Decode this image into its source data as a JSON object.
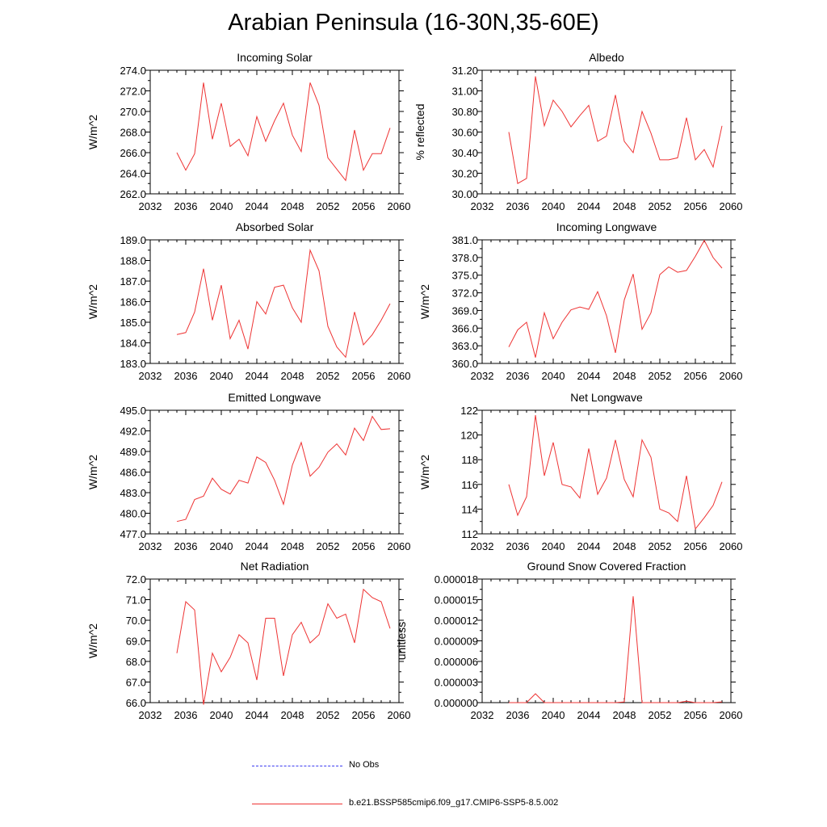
{
  "title": "Arabian Peninsula (16-30N,35-60E)",
  "legend": [
    {
      "label": "No Obs",
      "color": "#3a3af0",
      "style": "dashed"
    },
    {
      "label": "b.e21.BSSP585cmip6.f09_g17.CMIP6-SSP5-8.5.002",
      "color": "#ee3333",
      "style": "solid"
    }
  ],
  "chart_data": [
    {
      "type": "line",
      "title": "Incoming Solar",
      "ylabel": "W/m^2",
      "xlim": [
        2032,
        2060
      ],
      "xticks": [
        "2032",
        "2036",
        "2040",
        "2044",
        "2048",
        "2052",
        "2056",
        "2060"
      ],
      "ylim": [
        262.0,
        274.0
      ],
      "yticks": [
        "262.0",
        "264.0",
        "266.0",
        "268.0",
        "270.0",
        "272.0",
        "274.0"
      ],
      "color": "#ee3333",
      "x": [
        2035,
        2036,
        2037,
        2038,
        2039,
        2040,
        2041,
        2042,
        2043,
        2044,
        2045,
        2046,
        2047,
        2048,
        2049,
        2050,
        2051,
        2052,
        2053,
        2054,
        2055,
        2056,
        2057,
        2058,
        2059
      ],
      "values": [
        266.0,
        264.3,
        265.9,
        272.8,
        267.3,
        270.8,
        266.6,
        267.3,
        265.7,
        269.5,
        267.1,
        269.1,
        270.8,
        267.7,
        266.1,
        272.8,
        270.6,
        265.5,
        264.4,
        263.3,
        268.2,
        264.3,
        265.9,
        265.9,
        268.4
      ]
    },
    {
      "type": "line",
      "title": "Albedo",
      "ylabel": "% reflected",
      "xlim": [
        2032,
        2060
      ],
      "xticks": [
        "2032",
        "2036",
        "2040",
        "2044",
        "2048",
        "2052",
        "2056",
        "2060"
      ],
      "ylim": [
        30.0,
        31.2
      ],
      "yticks": [
        "30.00",
        "30.20",
        "30.40",
        "30.60",
        "30.80",
        "31.00",
        "31.20"
      ],
      "color": "#ee3333",
      "x": [
        2035,
        2036,
        2037,
        2038,
        2039,
        2040,
        2041,
        2042,
        2043,
        2044,
        2045,
        2046,
        2047,
        2048,
        2049,
        2050,
        2051,
        2052,
        2053,
        2054,
        2055,
        2056,
        2057,
        2058,
        2059
      ],
      "values": [
        30.6,
        30.1,
        30.15,
        31.14,
        30.66,
        30.91,
        30.8,
        30.65,
        30.76,
        30.86,
        30.51,
        30.56,
        30.96,
        30.51,
        30.4,
        30.8,
        30.59,
        30.33,
        30.33,
        30.35,
        30.74,
        30.33,
        30.43,
        30.26,
        30.66
      ]
    },
    {
      "type": "line",
      "title": "Absorbed Solar",
      "ylabel": "W/m^2",
      "xlim": [
        2032,
        2060
      ],
      "xticks": [
        "2032",
        "2036",
        "2040",
        "2044",
        "2048",
        "2052",
        "2056",
        "2060"
      ],
      "ylim": [
        183.0,
        189.0
      ],
      "yticks": [
        "183.0",
        "184.0",
        "185.0",
        "186.0",
        "187.0",
        "188.0",
        "189.0"
      ],
      "color": "#ee3333",
      "x": [
        2035,
        2036,
        2037,
        2038,
        2039,
        2040,
        2041,
        2042,
        2043,
        2044,
        2045,
        2046,
        2047,
        2048,
        2049,
        2050,
        2051,
        2052,
        2053,
        2054,
        2055,
        2056,
        2057,
        2058,
        2059
      ],
      "values": [
        184.4,
        184.5,
        185.5,
        187.6,
        185.1,
        186.8,
        184.2,
        185.1,
        183.7,
        186.0,
        185.4,
        186.7,
        186.8,
        185.7,
        185.0,
        188.5,
        187.5,
        184.8,
        183.8,
        183.3,
        185.5,
        183.9,
        184.4,
        185.1,
        185.9
      ]
    },
    {
      "type": "line",
      "title": "Incoming Longwave",
      "ylabel": "W/m^2",
      "xlim": [
        2032,
        2060
      ],
      "xticks": [
        "2032",
        "2036",
        "2040",
        "2044",
        "2048",
        "2052",
        "2056",
        "2060"
      ],
      "ylim": [
        360.0,
        381.0
      ],
      "yticks": [
        "360.0",
        "363.0",
        "366.0",
        "369.0",
        "372.0",
        "375.0",
        "378.0",
        "381.0"
      ],
      "color": "#ee3333",
      "x": [
        2035,
        2036,
        2037,
        2038,
        2039,
        2040,
        2041,
        2042,
        2043,
        2044,
        2045,
        2046,
        2047,
        2048,
        2049,
        2050,
        2051,
        2052,
        2053,
        2054,
        2055,
        2056,
        2057,
        2058,
        2059
      ],
      "values": [
        362.8,
        365.7,
        367.0,
        361.0,
        368.6,
        364.2,
        367.0,
        369.1,
        369.6,
        369.2,
        372.2,
        368.1,
        361.8,
        370.8,
        375.2,
        365.8,
        368.6,
        375.1,
        376.4,
        375.5,
        375.8,
        378.2,
        380.9,
        378.0,
        376.2
      ]
    },
    {
      "type": "line",
      "title": "Emitted Longwave",
      "ylabel": "W/m^2",
      "xlim": [
        2032,
        2060
      ],
      "xticks": [
        "2032",
        "2036",
        "2040",
        "2044",
        "2048",
        "2052",
        "2056",
        "2060"
      ],
      "ylim": [
        477.0,
        495.0
      ],
      "yticks": [
        "477.0",
        "480.0",
        "483.0",
        "486.0",
        "489.0",
        "492.0",
        "495.0"
      ],
      "color": "#ee3333",
      "x": [
        2035,
        2036,
        2037,
        2038,
        2039,
        2040,
        2041,
        2042,
        2043,
        2044,
        2045,
        2046,
        2047,
        2048,
        2049,
        2050,
        2051,
        2052,
        2053,
        2054,
        2055,
        2056,
        2057,
        2058,
        2059
      ],
      "values": [
        478.8,
        479.1,
        482.0,
        482.5,
        485.1,
        483.5,
        482.8,
        484.8,
        484.4,
        488.2,
        487.4,
        484.8,
        481.3,
        487.0,
        490.3,
        485.4,
        486.7,
        488.9,
        490.1,
        488.5,
        492.4,
        490.6,
        494.1,
        492.2,
        492.3
      ]
    },
    {
      "type": "line",
      "title": "Net Longwave",
      "ylabel": "W/m^2",
      "xlim": [
        2032,
        2060
      ],
      "xticks": [
        "2032",
        "2036",
        "2040",
        "2044",
        "2048",
        "2052",
        "2056",
        "2060"
      ],
      "ylim": [
        112,
        122
      ],
      "yticks": [
        "112",
        "114",
        "116",
        "118",
        "120",
        "122"
      ],
      "color": "#ee3333",
      "x": [
        2035,
        2036,
        2037,
        2038,
        2039,
        2040,
        2041,
        2042,
        2043,
        2044,
        2045,
        2046,
        2047,
        2048,
        2049,
        2050,
        2051,
        2052,
        2053,
        2054,
        2055,
        2056,
        2057,
        2058,
        2059
      ],
      "values": [
        116.0,
        113.5,
        115.0,
        121.6,
        116.7,
        119.4,
        116.0,
        115.8,
        114.9,
        118.9,
        115.2,
        116.5,
        119.6,
        116.4,
        115.0,
        119.6,
        118.2,
        114.0,
        113.7,
        113.0,
        116.7,
        112.4,
        113.3,
        114.3,
        116.2
      ]
    },
    {
      "type": "line",
      "title": "Net Radiation",
      "ylabel": "W/m^2",
      "xlim": [
        2032,
        2060
      ],
      "xticks": [
        "2032",
        "2036",
        "2040",
        "2044",
        "2048",
        "2052",
        "2056",
        "2060"
      ],
      "ylim": [
        66.0,
        72.0
      ],
      "yticks": [
        "66.0",
        "67.0",
        "68.0",
        "69.0",
        "70.0",
        "71.0",
        "72.0"
      ],
      "color": "#ee3333",
      "x": [
        2035,
        2036,
        2037,
        2038,
        2039,
        2040,
        2041,
        2042,
        2043,
        2044,
        2045,
        2046,
        2047,
        2048,
        2049,
        2050,
        2051,
        2052,
        2053,
        2054,
        2055,
        2056,
        2057,
        2058,
        2059
      ],
      "values": [
        68.4,
        70.9,
        70.5,
        65.9,
        68.4,
        67.5,
        68.2,
        69.3,
        68.9,
        67.1,
        70.1,
        70.1,
        67.3,
        69.3,
        69.9,
        68.9,
        69.3,
        70.8,
        70.1,
        70.3,
        68.9,
        71.5,
        71.1,
        70.9,
        69.6
      ]
    },
    {
      "type": "line",
      "title": "Ground Snow Covered Fraction",
      "ylabel": "unitless",
      "xlim": [
        2032,
        2060
      ],
      "xticks": [
        "2032",
        "2036",
        "2040",
        "2044",
        "2048",
        "2052",
        "2056",
        "2060"
      ],
      "ylim": [
        0.0,
        1.8e-05
      ],
      "yticks": [
        "0.000000",
        "0.000003",
        "0.000006",
        "0.000009",
        "0.000012",
        "0.000015",
        "0.000018"
      ],
      "color": "#ee3333",
      "x": [
        2035,
        2036,
        2037,
        2038,
        2039,
        2040,
        2041,
        2042,
        2043,
        2044,
        2045,
        2046,
        2047,
        2048,
        2049,
        2050,
        2051,
        2052,
        2053,
        2054,
        2055,
        2056,
        2057,
        2058,
        2059
      ],
      "values": [
        0.0,
        0.0,
        0.0,
        1.3e-06,
        0.0,
        0.0,
        0.0,
        0.0,
        0.0,
        0.0,
        0.0,
        0.0,
        0.0,
        1e-07,
        1.55e-05,
        0.0,
        0.0,
        0.0,
        0.0,
        0.0,
        2e-07,
        0.0,
        0.0,
        0.0,
        1e-07
      ]
    }
  ]
}
